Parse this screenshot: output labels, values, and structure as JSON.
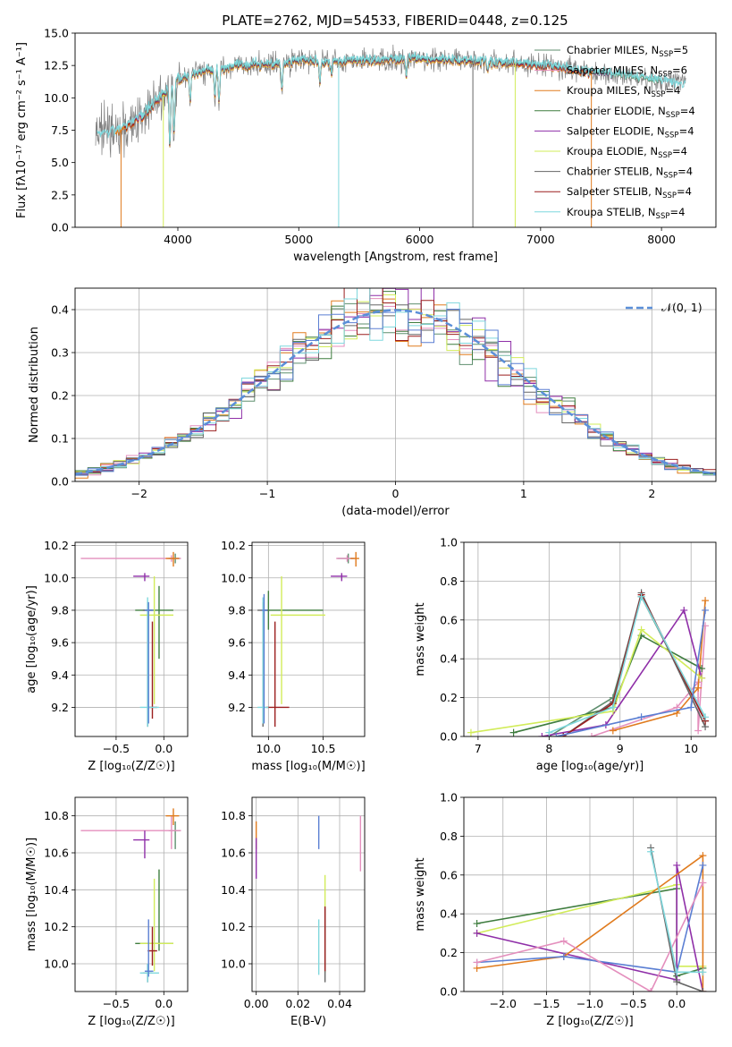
{
  "figure": {
    "title": "PLATE=2762, MJD=54533, FIBERID=0448, z=0.125"
  },
  "colors": {
    "c0": "#5f8f6f",
    "c1": "#e48fbd",
    "c2": "#e07b1e",
    "c3": "#3f7d3f",
    "c4": "#8f2fa8",
    "c5": "#d2ec5a",
    "c6": "#666666",
    "c7": "#9b1f1f",
    "c8": "#7fd8dd",
    "blue": "#5b7fd3"
  },
  "chart_data": [
    {
      "type": "line",
      "xlabel": "wavelength [Angstrom, rest frame]",
      "ylabel": "Flux [fλ10⁻¹⁷ erg cm⁻² s⁻¹ A⁻¹]",
      "xlim": [
        3150,
        8450
      ],
      "ylim": [
        0,
        15
      ],
      "xticks": [
        "4000",
        "5000",
        "6000",
        "7000",
        "8000"
      ],
      "yticks": [
        "0.0",
        "2.5",
        "5.0",
        "7.5",
        "10.0",
        "12.5",
        "15.0"
      ],
      "legend_position": "right",
      "legend": [
        "Chabrier MILES, N_SSP=5",
        "Salpeter MILES, N_SSP=6",
        "Kroupa MILES, N_SSP=4",
        "Chabrier ELODIE, N_SSP=4",
        "Salpeter ELODIE, N_SSP=4",
        "Kroupa ELODIE, N_SSP=4",
        "Chabrier STELIB, N_SSP=4",
        "Salpeter STELIB, N_SSP=4",
        "Kroupa STELIB, N_SSP=4"
      ],
      "data_profile": {
        "x": [
          3350,
          3500,
          3600,
          3700,
          3800,
          3900,
          4000,
          4200,
          4500,
          4800,
          5000,
          5300,
          5600,
          6000,
          6400,
          6800,
          7200,
          7600,
          8000,
          8200
        ],
        "y": [
          7.2,
          7.4,
          7.9,
          8.6,
          9.6,
          10.4,
          11.5,
          12.0,
          12.5,
          12.6,
          12.9,
          12.8,
          12.9,
          13.0,
          12.9,
          12.7,
          12.3,
          11.8,
          11.3,
          11.0
        ]
      }
    },
    {
      "type": "bar",
      "xlabel": "(data-model)/error",
      "ylabel": "Normed distribution",
      "xlim": [
        -2.5,
        2.5
      ],
      "ylim": [
        0,
        0.45
      ],
      "xticks": [
        "−2",
        "−1",
        "0",
        "1",
        "2"
      ],
      "yticks": [
        "0.0",
        "0.1",
        "0.2",
        "0.3",
        "0.4"
      ],
      "reference_curve": "𝒩(0, 1)",
      "bin_width": 0.1,
      "legend_position": "top-right"
    },
    {
      "type": "scatter",
      "xlabel": "Z [log₁₀(Z/Z☉)]",
      "ylabel": "age  [log₁₀(age/yr)]",
      "xlim": [
        -0.93,
        0.25
      ],
      "ylim": [
        9.02,
        10.22
      ],
      "xticks": [
        "−0.5",
        "0.0"
      ],
      "yticks": [
        "9.2",
        "9.4",
        "9.6",
        "9.8",
        "10.0",
        "10.2"
      ],
      "points": [
        {
          "x": 0.12,
          "y": 10.12,
          "xerr": [
            0.07,
            0.05
          ],
          "yerr": [
            0.03,
            0.03
          ],
          "c": "c0"
        },
        {
          "x": 0.08,
          "y": 10.12,
          "xerr": [
            0.95,
            0.1
          ],
          "yerr": [
            0.02,
            0.02
          ],
          "c": "c1"
        },
        {
          "x": 0.1,
          "y": 10.12,
          "xerr": [
            0.08,
            0.06
          ],
          "yerr": [
            0.05,
            0.04
          ],
          "c": "c2"
        },
        {
          "x": -0.05,
          "y": 9.8,
          "xerr": [
            0.25,
            0.15
          ],
          "yerr": [
            0.3,
            0.15
          ],
          "c": "c3"
        },
        {
          "x": -0.2,
          "y": 10.01,
          "xerr": [
            0.12,
            0.05
          ],
          "yerr": [
            0.03,
            0.02
          ],
          "c": "c4"
        },
        {
          "x": -0.1,
          "y": 9.77,
          "xerr": [
            0.15,
            0.2
          ],
          "yerr": [
            0.55,
            0.24
          ],
          "c": "c5"
        },
        {
          "x": -0.17,
          "y": 9.8,
          "xerr": [
            0.05,
            0.05
          ],
          "yerr": [
            0.72,
            0.05
          ],
          "c": "c6"
        },
        {
          "x": -0.12,
          "y": 9.2,
          "xerr": [
            0.05,
            0.05
          ],
          "yerr": [
            0.07,
            0.53
          ],
          "c": "c7"
        },
        {
          "x": -0.17,
          "y": 9.2,
          "xerr": [
            0.08,
            0.12
          ],
          "yerr": [
            0.12,
            0.68
          ],
          "c": "c8"
        },
        {
          "x": -0.16,
          "y": 9.8,
          "xerr": [
            0.04,
            0.05
          ],
          "yerr": [
            0.7,
            0.05
          ],
          "c": "blue"
        }
      ]
    },
    {
      "type": "scatter",
      "xlabel": "mass [log₁₀(M/M☉)]",
      "ylabel": "",
      "xlim": [
        9.85,
        10.88
      ],
      "ylim": [
        9.02,
        10.22
      ],
      "xticks": [
        "10.0",
        "10.5"
      ],
      "yticks": [
        "9.2",
        "9.4",
        "9.6",
        "9.8",
        "10.0",
        "10.2"
      ],
      "points": [
        {
          "x": 10.73,
          "y": 10.12,
          "xerr": [
            0.1,
            0.05
          ],
          "yerr": [
            0.03,
            0.03
          ],
          "c": "c0"
        },
        {
          "x": 10.72,
          "y": 10.12,
          "xerr": [
            0.1,
            0.08
          ],
          "yerr": [
            0.02,
            0.02
          ],
          "c": "c1"
        },
        {
          "x": 10.8,
          "y": 10.12,
          "xerr": [
            0.05,
            0.03
          ],
          "yerr": [
            0.05,
            0.04
          ],
          "c": "c2"
        },
        {
          "x": 10.0,
          "y": 9.8,
          "xerr": [
            0.03,
            0.5
          ],
          "yerr": [
            0.12,
            0.12
          ],
          "c": "c3"
        },
        {
          "x": 10.67,
          "y": 10.01,
          "xerr": [
            0.1,
            0.05
          ],
          "yerr": [
            0.03,
            0.02
          ],
          "c": "c4"
        },
        {
          "x": 10.12,
          "y": 9.77,
          "xerr": [
            0.1,
            0.4
          ],
          "yerr": [
            0.55,
            0.24
          ],
          "c": "c5"
        },
        {
          "x": 9.95,
          "y": 9.8,
          "xerr": [
            0.05,
            0.05
          ],
          "yerr": [
            0.72,
            0.05
          ],
          "c": "c6"
        },
        {
          "x": 10.06,
          "y": 9.2,
          "xerr": [
            0.08,
            0.13
          ],
          "yerr": [
            0.12,
            0.53
          ],
          "c": "c7"
        },
        {
          "x": 9.95,
          "y": 9.2,
          "xerr": [
            0.05,
            0.05
          ],
          "yerr": [
            0.1,
            0.68
          ],
          "c": "c8"
        },
        {
          "x": 9.96,
          "y": 9.8,
          "xerr": [
            0.02,
            0.03
          ],
          "yerr": [
            0.7,
            0.1
          ],
          "c": "blue"
        }
      ]
    },
    {
      "type": "line",
      "xlabel": "age  [log₁₀(age/yr)]",
      "ylabel": "mass weight",
      "xlim": [
        6.8,
        10.35
      ],
      "ylim": [
        0,
        1.0
      ],
      "xticks": [
        "7",
        "8",
        "9",
        "10"
      ],
      "yticks": [
        "0.0",
        "0.2",
        "0.4",
        "0.6",
        "0.8",
        "1.0"
      ],
      "series": [
        {
          "c": "c0",
          "points": [
            [
              8.0,
              0.0
            ],
            [
              8.9,
              0.2
            ],
            [
              9.3,
              0.72
            ],
            [
              10.2,
              0.08
            ]
          ]
        },
        {
          "c": "c1",
          "points": [
            [
              8.6,
              0.0
            ],
            [
              9.8,
              0.15
            ],
            [
              10.1,
              0.28
            ],
            [
              10.1,
              0.03
            ],
            [
              10.2,
              0.57
            ]
          ]
        },
        {
          "c": "c2",
          "points": [
            [
              8.9,
              0.03
            ],
            [
              9.8,
              0.12
            ],
            [
              10.1,
              0.25
            ],
            [
              10.2,
              0.7
            ]
          ]
        },
        {
          "c": "c3",
          "points": [
            [
              7.5,
              0.02
            ],
            [
              8.9,
              0.15
            ],
            [
              9.3,
              0.52
            ],
            [
              10.15,
              0.35
            ]
          ]
        },
        {
          "c": "c4",
          "points": [
            [
              7.9,
              0.0
            ],
            [
              8.8,
              0.06
            ],
            [
              9.9,
              0.65
            ],
            [
              10.15,
              0.3
            ]
          ]
        },
        {
          "c": "c5",
          "points": [
            [
              6.9,
              0.02
            ],
            [
              8.9,
              0.13
            ],
            [
              9.3,
              0.55
            ],
            [
              10.15,
              0.3
            ]
          ]
        },
        {
          "c": "c6",
          "points": [
            [
              8.2,
              0.0
            ],
            [
              8.9,
              0.18
            ],
            [
              9.3,
              0.74
            ],
            [
              10.2,
              0.05
            ]
          ]
        },
        {
          "c": "c7",
          "points": [
            [
              8.2,
              0.0
            ],
            [
              8.9,
              0.17
            ],
            [
              9.3,
              0.73
            ],
            [
              10.2,
              0.08
            ]
          ]
        },
        {
          "c": "c8",
          "points": [
            [
              8.0,
              0.02
            ],
            [
              8.9,
              0.15
            ],
            [
              9.3,
              0.72
            ],
            [
              10.2,
              0.1
            ]
          ]
        },
        {
          "c": "blue",
          "points": [
            [
              8.1,
              0.0
            ],
            [
              9.3,
              0.1
            ],
            [
              10.0,
              0.15
            ],
            [
              10.2,
              0.65
            ]
          ]
        }
      ]
    },
    {
      "type": "scatter",
      "xlabel": "Z [log₁₀(Z/Z☉)]",
      "ylabel": "mass [log₁₀(M/M☉)]",
      "xlim": [
        -0.93,
        0.25
      ],
      "ylim": [
        9.85,
        10.9
      ],
      "xticks": [
        "−0.5",
        "0.0"
      ],
      "yticks": [
        "10.0",
        "10.2",
        "10.4",
        "10.6",
        "10.8"
      ],
      "points": [
        {
          "x": 0.12,
          "y": 10.72,
          "xerr": [
            0.07,
            0.05
          ],
          "yerr": [
            0.1,
            0.05
          ],
          "c": "c0"
        },
        {
          "x": 0.08,
          "y": 10.72,
          "xerr": [
            0.95,
            0.1
          ],
          "yerr": [
            0.1,
            0.08
          ],
          "c": "c1"
        },
        {
          "x": 0.1,
          "y": 10.8,
          "xerr": [
            0.08,
            0.06
          ],
          "yerr": [
            0.05,
            0.04
          ],
          "c": "c2"
        },
        {
          "x": -0.05,
          "y": 10.11,
          "xerr": [
            0.25,
            0.15
          ],
          "yerr": [
            0.04,
            0.4
          ],
          "c": "c3"
        },
        {
          "x": -0.2,
          "y": 10.67,
          "xerr": [
            0.12,
            0.05
          ],
          "yerr": [
            0.1,
            0.05
          ],
          "c": "c4"
        },
        {
          "x": -0.1,
          "y": 10.11,
          "xerr": [
            0.15,
            0.2
          ],
          "yerr": [
            0.15,
            0.35
          ],
          "c": "c5"
        },
        {
          "x": -0.17,
          "y": 9.95,
          "xerr": [
            0.05,
            0.05
          ],
          "yerr": [
            0.05,
            0.05
          ],
          "c": "c6"
        },
        {
          "x": -0.12,
          "y": 10.07,
          "xerr": [
            0.05,
            0.05
          ],
          "yerr": [
            0.08,
            0.13
          ],
          "c": "c7"
        },
        {
          "x": -0.17,
          "y": 9.95,
          "xerr": [
            0.08,
            0.12
          ],
          "yerr": [
            0.05,
            0.05
          ],
          "c": "c8"
        },
        {
          "x": -0.16,
          "y": 9.96,
          "xerr": [
            0.04,
            0.05
          ],
          "yerr": [
            0.03,
            0.28
          ],
          "c": "blue"
        }
      ]
    },
    {
      "type": "scatter",
      "xlabel": "E(B-V)",
      "ylabel": "",
      "xlim": [
        -0.002,
        0.052
      ],
      "ylim": [
        9.85,
        10.9
      ],
      "xticks": [
        "0.00",
        "0.02",
        "0.04"
      ],
      "yticks": [
        "10.0",
        "10.2",
        "10.4",
        "10.6",
        "10.8"
      ],
      "points": [
        {
          "x": 0.0,
          "y": 10.72,
          "yerr": [
            0.1,
            0.05
          ],
          "c": "c2"
        },
        {
          "x": 0.0,
          "y": 10.58,
          "yerr": [
            0.12,
            0.1
          ],
          "c": "c4"
        },
        {
          "x": 0.03,
          "y": 10.72,
          "yerr": [
            0.1,
            0.08
          ],
          "c": "blue"
        },
        {
          "x": 0.05,
          "y": 10.65,
          "yerr": [
            0.15,
            0.15
          ],
          "c": "c1"
        },
        {
          "x": 0.033,
          "y": 10.25,
          "yerr": [
            0.3,
            0.23
          ],
          "c": "c5"
        },
        {
          "x": 0.033,
          "y": 10.1,
          "yerr": [
            0.2,
            0.2
          ],
          "c": "c6"
        },
        {
          "x": 0.033,
          "y": 10.06,
          "yerr": [
            0.1,
            0.25
          ],
          "c": "c7"
        },
        {
          "x": 0.03,
          "y": 10.09,
          "yerr": [
            0.15,
            0.15
          ],
          "c": "c8"
        }
      ]
    },
    {
      "type": "line",
      "xlabel": "Z [log₁₀(Z/Z☉)]",
      "ylabel": "mass weight",
      "xlim": [
        -2.45,
        0.45
      ],
      "ylim": [
        0,
        1.0
      ],
      "xticks": [
        "−2.0",
        "−1.5",
        "−1.0",
        "−0.5",
        "0.0"
      ],
      "yticks": [
        "0.0",
        "0.2",
        "0.4",
        "0.6",
        "0.8",
        "1.0"
      ],
      "series": [
        {
          "c": "c3",
          "points": [
            [
              -2.3,
              0.35
            ],
            [
              0.0,
              0.53
            ],
            [
              0.0,
              0.08
            ],
            [
              0.3,
              0.12
            ]
          ]
        },
        {
          "c": "c5",
          "points": [
            [
              -2.3,
              0.3
            ],
            [
              0.0,
              0.55
            ],
            [
              0.0,
              0.13
            ],
            [
              0.3,
              0.13
            ]
          ]
        },
        {
          "c": "c4",
          "points": [
            [
              -2.3,
              0.3
            ],
            [
              0.0,
              0.06
            ],
            [
              0.0,
              0.65
            ],
            [
              0.3,
              0.0
            ]
          ]
        },
        {
          "c": "c2",
          "points": [
            [
              -2.3,
              0.12
            ],
            [
              -1.3,
              0.18
            ],
            [
              0.3,
              0.7
            ],
            [
              0.3,
              0.0
            ]
          ]
        },
        {
          "c": "blue",
          "points": [
            [
              -2.3,
              0.15
            ],
            [
              -1.3,
              0.18
            ],
            [
              0.0,
              0.1
            ],
            [
              0.3,
              0.65
            ]
          ]
        },
        {
          "c": "c1",
          "points": [
            [
              -2.3,
              0.15
            ],
            [
              -1.3,
              0.26
            ],
            [
              -0.3,
              0.0
            ],
            [
              0.3,
              0.56
            ]
          ]
        },
        {
          "c": "c6",
          "points": [
            [
              -0.3,
              0.74
            ],
            [
              0.0,
              0.05
            ],
            [
              0.3,
              0.0
            ]
          ]
        },
        {
          "c": "c8",
          "points": [
            [
              -0.3,
              0.72
            ],
            [
              0.0,
              0.1
            ],
            [
              0.3,
              0.1
            ]
          ]
        }
      ]
    }
  ]
}
